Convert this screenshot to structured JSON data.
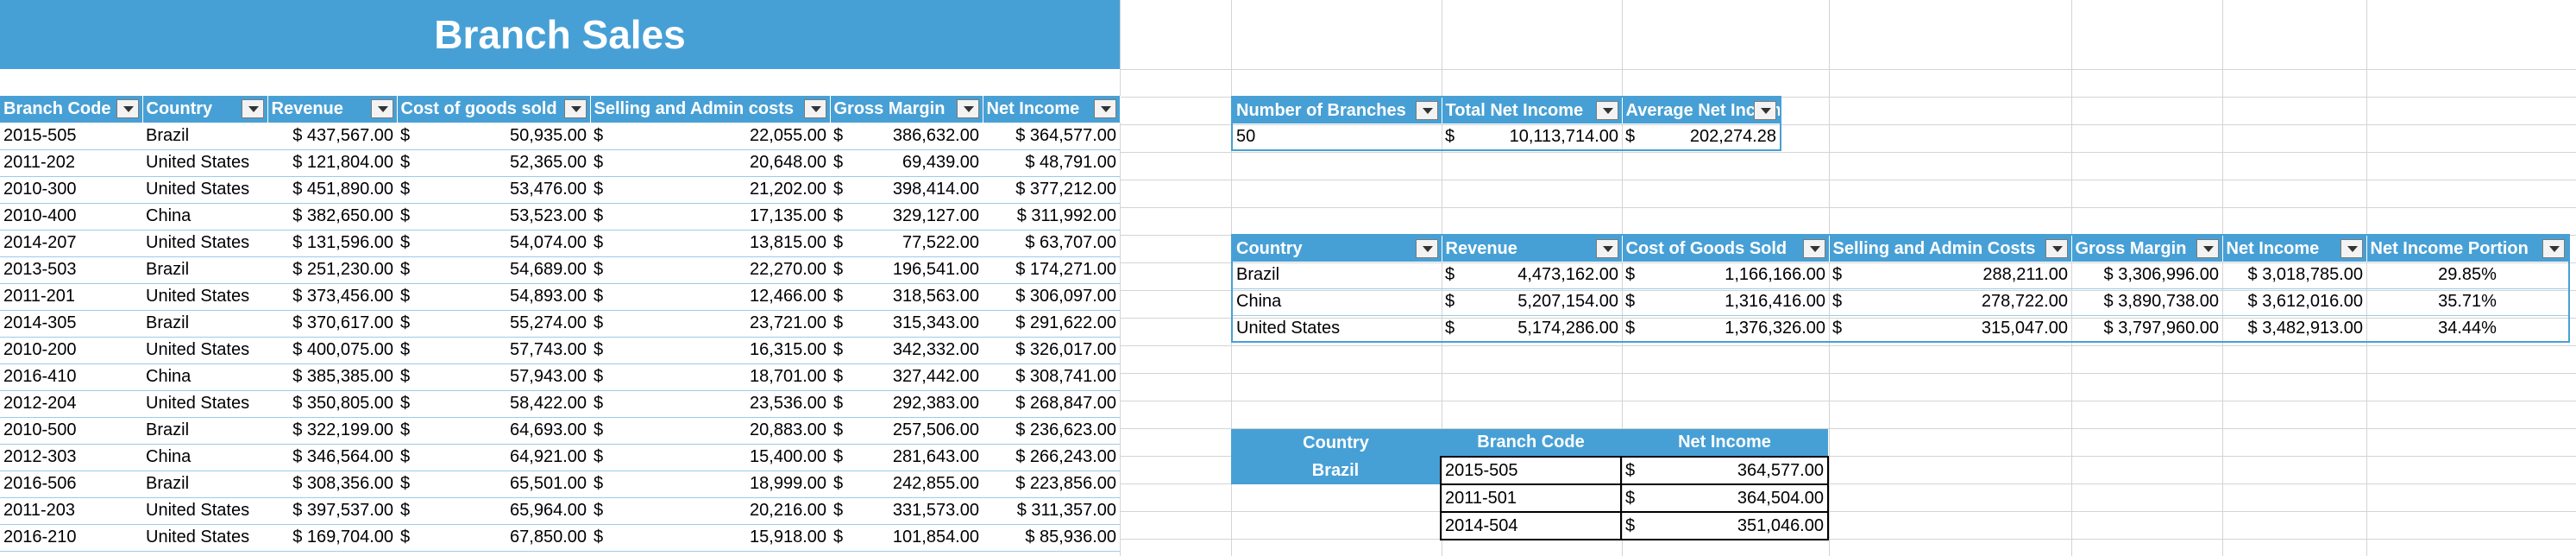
{
  "title": "Branch Sales",
  "main_table": {
    "headers": [
      "Branch Code",
      "Country",
      "Revenue",
      "Cost of goods sold",
      "Selling and Admin costs",
      "Gross Margin",
      "Net Income"
    ],
    "rows": [
      [
        "2015-505",
        "Brazil",
        "437,567.00",
        "50,935.00",
        "22,055.00",
        "386,632.00",
        "364,577.00"
      ],
      [
        "2011-202",
        "United States",
        "121,804.00",
        "52,365.00",
        "20,648.00",
        "69,439.00",
        "48,791.00"
      ],
      [
        "2010-300",
        "United States",
        "451,890.00",
        "53,476.00",
        "21,202.00",
        "398,414.00",
        "377,212.00"
      ],
      [
        "2010-400",
        "China",
        "382,650.00",
        "53,523.00",
        "17,135.00",
        "329,127.00",
        "311,992.00"
      ],
      [
        "2014-207",
        "United States",
        "131,596.00",
        "54,074.00",
        "13,815.00",
        "77,522.00",
        "63,707.00"
      ],
      [
        "2013-503",
        "Brazil",
        "251,230.00",
        "54,689.00",
        "22,270.00",
        "196,541.00",
        "174,271.00"
      ],
      [
        "2011-201",
        "United States",
        "373,456.00",
        "54,893.00",
        "12,466.00",
        "318,563.00",
        "306,097.00"
      ],
      [
        "2014-305",
        "Brazil",
        "370,617.00",
        "55,274.00",
        "23,721.00",
        "315,343.00",
        "291,622.00"
      ],
      [
        "2010-200",
        "United States",
        "400,075.00",
        "57,743.00",
        "16,315.00",
        "342,332.00",
        "326,017.00"
      ],
      [
        "2016-410",
        "China",
        "385,385.00",
        "57,943.00",
        "18,701.00",
        "327,442.00",
        "308,741.00"
      ],
      [
        "2012-204",
        "United States",
        "350,805.00",
        "58,422.00",
        "23,536.00",
        "292,383.00",
        "268,847.00"
      ],
      [
        "2010-500",
        "Brazil",
        "322,199.00",
        "64,693.00",
        "20,883.00",
        "257,506.00",
        "236,623.00"
      ],
      [
        "2012-303",
        "China",
        "346,564.00",
        "64,921.00",
        "15,400.00",
        "281,643.00",
        "266,243.00"
      ],
      [
        "2016-506",
        "Brazil",
        "308,356.00",
        "65,501.00",
        "18,999.00",
        "242,855.00",
        "223,856.00"
      ],
      [
        "2011-203",
        "United States",
        "397,537.00",
        "65,964.00",
        "20,216.00",
        "331,573.00",
        "311,357.00"
      ],
      [
        "2016-210",
        "United States",
        "169,704.00",
        "67,850.00",
        "15,918.00",
        "101,854.00",
        "85,936.00"
      ]
    ]
  },
  "summary_table": {
    "headers": [
      "Number of Branches",
      "Total Net Income",
      "Average Net Income"
    ],
    "row": [
      "50",
      "10,113,714.00",
      "202,274.28"
    ]
  },
  "country_table": {
    "headers": [
      "Country",
      "Revenue",
      "Cost of Goods Sold",
      "Selling and Admin Costs",
      "Gross Margin",
      "Net Income",
      "Net Income Portion"
    ],
    "rows": [
      [
        "Brazil",
        "4,473,162.00",
        "1,166,166.00",
        "288,211.00",
        "3,306,996.00",
        "3,018,785.00",
        "29.85%"
      ],
      [
        "China",
        "5,207,154.00",
        "1,316,416.00",
        "278,722.00",
        "3,890,738.00",
        "3,612,016.00",
        "35.71%"
      ],
      [
        "United States",
        "5,174,286.00",
        "1,376,326.00",
        "315,047.00",
        "3,797,960.00",
        "3,482,913.00",
        "34.44%"
      ]
    ]
  },
  "top_table": {
    "headers": [
      "Country",
      "Branch Code",
      "Net Income"
    ],
    "country": "Brazil",
    "rows": [
      [
        "2015-505",
        "364,577.00"
      ],
      [
        "2011-501",
        "364,504.00"
      ],
      [
        "2014-504",
        "351,046.00"
      ]
    ]
  },
  "currency_symbol": "$",
  "colors": {
    "header_blue": "#47a0d5",
    "row_border": "#9ccbe8",
    "grid": "#d4d4d4"
  }
}
